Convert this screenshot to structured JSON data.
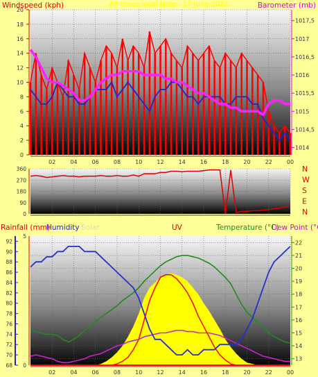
{
  "colors": {
    "page_bg": "#FFFF99",
    "wind": "#FF0000",
    "wind_avg": "#2222CC",
    "barometer": "#FF22FF",
    "direction": "#DD0000",
    "humidity": "#2233CC",
    "solar": "#FFFF00",
    "uv": "#FF0000",
    "temperature": "#228822",
    "dewpoint": "#CC22CC",
    "rain": "#FF0000",
    "axis_left": "#2222CC",
    "axis_right": "#228822",
    "label_red": "#DD0000",
    "label_pink": "#DD00DD"
  },
  "header": {
    "left": "Windspeed (kph)",
    "center": "All times local time - 17 June 2021",
    "right": "Barometer (mb)"
  },
  "chart_data": [
    {
      "id": "wind-barometer",
      "type": "line",
      "title": "All times local time - 17 June 2021",
      "ylabel": "Windspeed (kph)",
      "y2label": "Barometer (mb)",
      "ylim": [
        0,
        20
      ],
      "y2lim": [
        1013.8,
        1017.8
      ],
      "yticks": [
        "0",
        "2",
        "4",
        "6",
        "8",
        "10",
        "12",
        "14",
        "16",
        "18",
        "20"
      ],
      "y2ticks": [
        "1014",
        "1014,5",
        "1015",
        "1015,5",
        "1016",
        "1016,5",
        "1017",
        "1017,5"
      ],
      "xticks": [
        "02",
        "04",
        "06",
        "08",
        "10",
        "12",
        "14",
        "16",
        "18",
        "20",
        "22",
        "00"
      ],
      "x_hours": [
        0,
        0.5,
        1,
        1.5,
        2,
        2.5,
        3,
        3.5,
        4,
        4.5,
        5,
        5.5,
        6,
        6.5,
        7,
        7.5,
        8,
        8.5,
        9,
        9.5,
        10,
        10.5,
        11,
        11.5,
        12,
        12.5,
        13,
        13.5,
        14,
        14.5,
        15,
        15.5,
        16,
        16.5,
        17,
        17.5,
        18,
        18.5,
        19,
        19.5,
        20,
        20.5,
        21,
        21.5,
        22,
        22.5,
        23,
        23.5,
        24
      ],
      "series": [
        {
          "name": "Gust",
          "axis": "left",
          "values": [
            10,
            14,
            11,
            9,
            12,
            10,
            8,
            13,
            11,
            9,
            14,
            12,
            10,
            13,
            15,
            14,
            12,
            16,
            13,
            15,
            14,
            12,
            17,
            14,
            15,
            16,
            14,
            13,
            12,
            15,
            14,
            13,
            14,
            15,
            13,
            12,
            14,
            13,
            12,
            14,
            13,
            12,
            11,
            10,
            6,
            4,
            3,
            4,
            3
          ]
        },
        {
          "name": "Average",
          "axis": "left",
          "values": [
            9,
            8,
            7,
            7,
            8,
            10,
            9,
            8,
            8,
            7,
            7,
            8,
            9,
            9,
            9,
            10,
            8,
            9,
            10,
            9,
            8,
            7,
            6,
            8,
            9,
            9,
            10,
            10,
            9,
            8,
            8,
            7,
            8,
            8,
            8,
            8,
            7,
            7,
            8,
            8,
            8,
            7,
            7,
            5,
            4,
            3,
            2,
            3,
            2
          ]
        },
        {
          "name": "Barometer",
          "axis": "right",
          "values": [
            1016.7,
            1016.5,
            1016.2,
            1015.9,
            1015.8,
            1015.8,
            1015.7,
            1015.6,
            1015.5,
            1015.3,
            1015.3,
            1015.4,
            1015.6,
            1015.8,
            1015.9,
            1016.0,
            1016.0,
            1016.1,
            1016.1,
            1016.1,
            1016.1,
            1016.0,
            1016.0,
            1016.0,
            1016.0,
            1015.9,
            1015.9,
            1015.8,
            1015.8,
            1015.7,
            1015.6,
            1015.5,
            1015.5,
            1015.4,
            1015.3,
            1015.2,
            1015.2,
            1015.1,
            1015.1,
            1015.0,
            1015.0,
            1015.0,
            1015.0,
            1014.9,
            1015.2,
            1015.3,
            1015.3,
            1015.2,
            1015.2
          ]
        }
      ]
    },
    {
      "id": "wind-direction",
      "type": "line",
      "ylabel": "",
      "ylim": [
        0,
        360
      ],
      "yticks": [
        "0",
        "90",
        "180",
        "270",
        "360"
      ],
      "compass": [
        "N",
        "W",
        "S",
        "E",
        "N"
      ],
      "xticks": [
        "02",
        "04",
        "06",
        "08",
        "10",
        "12",
        "14",
        "16",
        "18",
        "20",
        "22",
        "00"
      ],
      "x_hours": [
        0,
        0.5,
        1,
        1.5,
        2,
        2.5,
        3,
        3.5,
        4,
        4.5,
        5,
        5.5,
        6,
        6.5,
        7,
        7.5,
        8,
        8.5,
        9,
        9.5,
        10,
        10.5,
        11,
        11.5,
        12,
        12.5,
        13,
        13.5,
        14,
        14.5,
        15,
        15.5,
        16,
        16.5,
        17,
        17.5,
        18,
        18.5,
        19,
        19.5,
        20,
        20.5,
        21,
        21.5,
        22,
        22.5,
        23,
        23.5,
        24
      ],
      "series": [
        {
          "name": "Wind direction",
          "values": [
            300,
            305,
            300,
            290,
            295,
            300,
            305,
            300,
            300,
            295,
            300,
            300,
            300,
            305,
            300,
            300,
            305,
            300,
            300,
            310,
            300,
            320,
            320,
            320,
            330,
            330,
            340,
            340,
            335,
            340,
            340,
            340,
            345,
            350,
            350,
            350,
            0,
            350,
            10,
            20,
            20,
            25,
            25,
            30,
            35,
            40,
            45,
            55,
            60
          ]
        }
      ]
    },
    {
      "id": "temp-humidity-uv",
      "type": "line",
      "labels": {
        "rainfall": "Rainfall (mm)",
        "humidity": "Humidity",
        "solar": "Solar",
        "uv": "UV",
        "temperature": "Temperature (°C)",
        "dewpoint": "Dew Point (°C)"
      },
      "ylim": [
        68,
        93
      ],
      "yticks": [
        "68",
        "70",
        "72",
        "74",
        "76",
        "78",
        "80",
        "82",
        "84",
        "86",
        "88",
        "90",
        "92"
      ],
      "y2lim": [
        12.5,
        22.5
      ],
      "y2ticks": [
        "13",
        "14",
        "15",
        "16",
        "17",
        "18",
        "19",
        "20",
        "21",
        "22"
      ],
      "rain_ticks": [
        "0",
        "5"
      ],
      "xticks": [
        "02",
        "04",
        "06",
        "08",
        "10",
        "12",
        "14",
        "16",
        "18",
        "20",
        "22",
        "00"
      ],
      "x_hours": [
        0,
        0.5,
        1,
        1.5,
        2,
        2.5,
        3,
        3.5,
        4,
        4.5,
        5,
        5.5,
        6,
        6.5,
        7,
        7.5,
        8,
        8.5,
        9,
        9.5,
        10,
        10.5,
        11,
        11.5,
        12,
        12.5,
        13,
        13.5,
        14,
        14.5,
        15,
        15.5,
        16,
        16.5,
        17,
        17.5,
        18,
        18.5,
        19,
        19.5,
        20,
        20.5,
        21,
        21.5,
        22,
        22.5,
        23,
        23.5,
        24
      ],
      "series": [
        {
          "name": "Humidity",
          "axis": "left",
          "values": [
            87,
            88,
            88,
            89,
            89,
            90,
            90,
            91,
            91,
            91,
            90,
            90,
            90,
            89,
            88,
            87,
            86,
            85,
            84,
            83,
            81,
            78,
            75,
            73,
            73,
            72,
            71,
            70,
            70,
            71,
            70,
            70,
            71,
            71,
            71,
            72,
            72,
            72,
            72,
            73,
            75,
            77,
            80,
            83,
            86,
            88,
            89,
            90,
            91
          ]
        },
        {
          "name": "Temperature",
          "axis": "right",
          "values": [
            15.2,
            15.1,
            15.0,
            14.9,
            14.9,
            14.8,
            14.5,
            14.3,
            14.5,
            14.8,
            15.2,
            15.5,
            15.9,
            16.2,
            16.5,
            16.8,
            17.1,
            17.5,
            17.8,
            18.1,
            18.5,
            19.0,
            19.4,
            19.8,
            20.2,
            20.5,
            20.7,
            20.9,
            21.0,
            21.0,
            20.9,
            20.8,
            20.6,
            20.4,
            20.1,
            19.7,
            19.3,
            18.8,
            18.0,
            17.2,
            16.6,
            16.2,
            15.8,
            15.4,
            15.0,
            14.7,
            14.5,
            14.3,
            14.2
          ]
        },
        {
          "name": "Dew Point",
          "axis": "right",
          "values": [
            13.2,
            13.3,
            13.2,
            13.1,
            13.0,
            12.8,
            12.7,
            12.7,
            12.8,
            12.9,
            13.0,
            13.2,
            13.3,
            13.4,
            13.6,
            13.8,
            14.0,
            14.1,
            14.3,
            14.4,
            14.5,
            14.7,
            14.8,
            14.9,
            15.0,
            15.0,
            15.1,
            15.2,
            15.2,
            15.1,
            15.1,
            15.0,
            15.0,
            15.0,
            14.9,
            14.8,
            14.6,
            14.4,
            14.2,
            14.0,
            13.8,
            13.6,
            13.4,
            13.2,
            13.1,
            13.0,
            12.9,
            12.8,
            12.8
          ]
        },
        {
          "name": "Solar",
          "scale": "fraction",
          "values": [
            0,
            0,
            0,
            0,
            0,
            0,
            0,
            0,
            0,
            0,
            0,
            0,
            0,
            0.01,
            0.03,
            0.06,
            0.1,
            0.15,
            0.22,
            0.3,
            0.4,
            0.52,
            0.6,
            0.64,
            0.68,
            0.7,
            0.71,
            0.7,
            0.68,
            0.65,
            0.6,
            0.55,
            0.48,
            0.42,
            0.35,
            0.28,
            0.2,
            0.14,
            0.09,
            0.05,
            0.02,
            0.01,
            0,
            0,
            0,
            0,
            0,
            0,
            0
          ]
        },
        {
          "name": "UV",
          "scale": "fraction",
          "values": [
            0,
            0,
            0,
            0,
            0,
            0,
            0,
            0,
            0,
            0,
            0,
            0,
            0,
            0,
            0,
            0,
            0.01,
            0.03,
            0.06,
            0.12,
            0.2,
            0.35,
            0.5,
            0.6,
            0.68,
            0.7,
            0.7,
            0.67,
            0.62,
            0.56,
            0.48,
            0.38,
            0.3,
            0.22,
            0.14,
            0.08,
            0.04,
            0.01,
            0,
            0,
            0,
            0,
            0,
            0,
            0,
            0,
            0,
            0,
            0
          ]
        },
        {
          "name": "Rainfall",
          "axis": "rain",
          "values": [
            0,
            0,
            0,
            0,
            0,
            0,
            0,
            0,
            0,
            0,
            0,
            0,
            0,
            0,
            0,
            0,
            0,
            0,
            0,
            0,
            0,
            0,
            0,
            0,
            0,
            0,
            0,
            0,
            0,
            0,
            0,
            0,
            0,
            0,
            0,
            0,
            0,
            0,
            0,
            0,
            0,
            0,
            0,
            0,
            0,
            0,
            0,
            0,
            0
          ]
        }
      ]
    }
  ]
}
